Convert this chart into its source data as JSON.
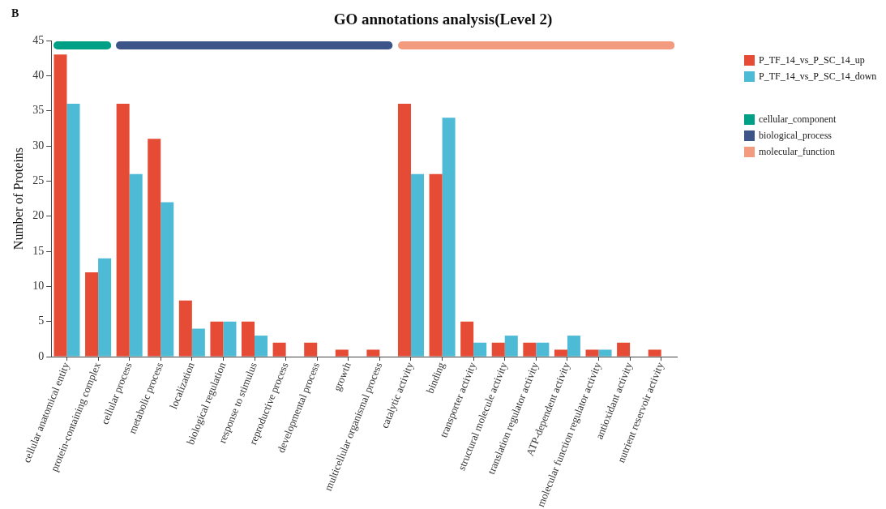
{
  "chart_data": {
    "type": "bar",
    "title": "GO annotations analysis(Level 2)",
    "ylabel": "Number of Proteins",
    "annotations": [
      "B",
      "cellular_component",
      "biological_process",
      "molecular_function"
    ],
    "categories": [
      "cellular anatomical entity",
      "protein-containing complex",
      "cellular process",
      "metabolic process",
      "localization",
      "biological regulation",
      "response to stimulus",
      "reproductive process",
      "developmental process",
      "growth",
      "multicellular organismal process",
      "catalytic activity",
      "binding",
      "transporter activity",
      "structural molecule activity",
      "translation regulator activity",
      "ATP-dependent activity",
      "molecular function regulator activity",
      "antioxidant activity",
      "nutrient reservoir activity"
    ],
    "series": [
      {
        "name": "P_TF_14_vs_P_SC_14_up",
        "color": "#e64b35",
        "values": [
          43,
          12,
          36,
          31,
          8,
          5,
          5,
          2,
          2,
          1,
          1,
          36,
          26,
          5,
          2,
          2,
          1,
          1,
          2,
          1
        ]
      },
      {
        "name": "P_TF_14_vs_P_SC_14_down",
        "color": "#4dbbd5",
        "values": [
          36,
          14,
          26,
          22,
          4,
          5,
          3,
          0,
          0,
          0,
          0,
          26,
          34,
          2,
          3,
          2,
          3,
          1,
          0,
          0
        ]
      }
    ],
    "ylim": [
      0,
      45
    ],
    "yticks": [
      0,
      5,
      10,
      15,
      20,
      25,
      30,
      35,
      40,
      45
    ],
    "legend": "top right"
  }
}
